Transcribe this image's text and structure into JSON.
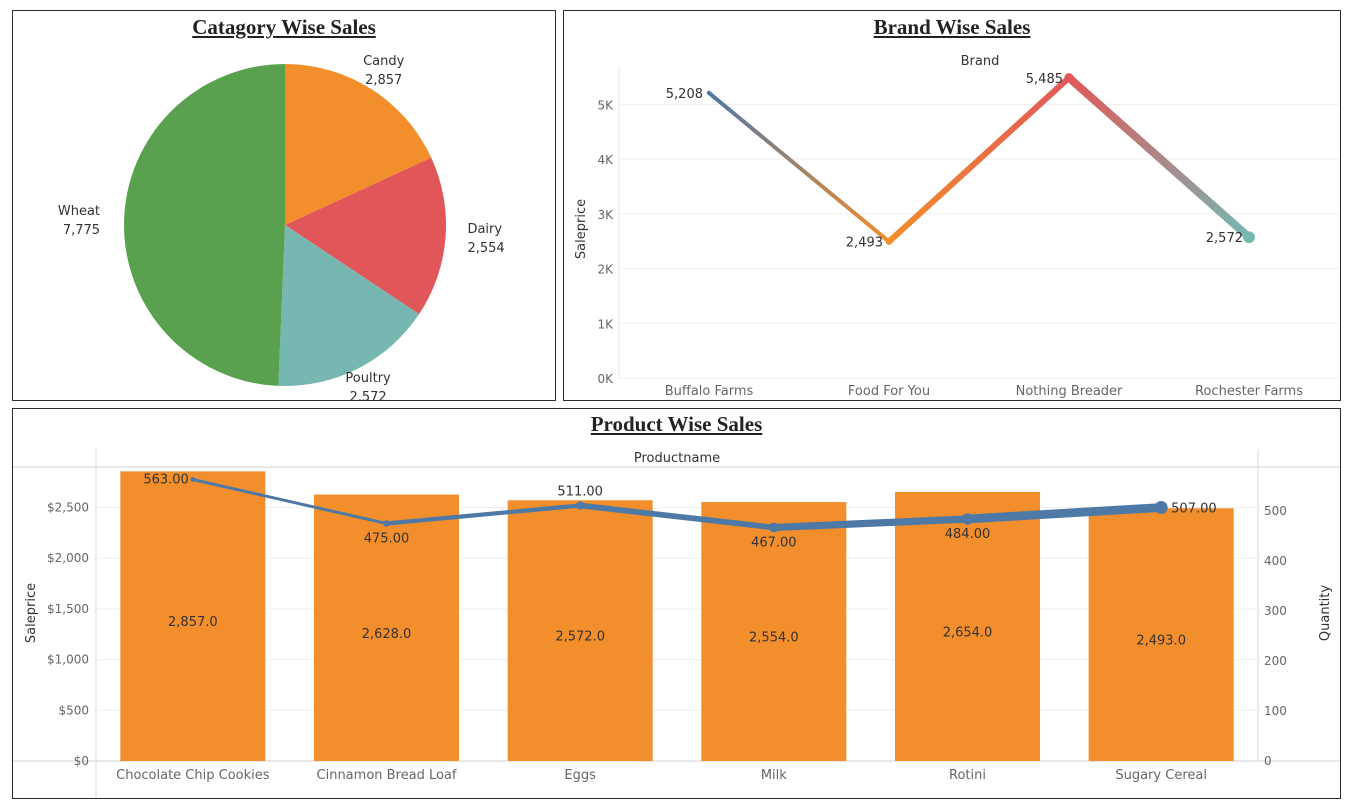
{
  "category_panel": {
    "title": "Catagory Wise Sales"
  },
  "brand_panel": {
    "title": "Brand Wise Sales",
    "header": "Brand",
    "y_axis_label": "Saleprice"
  },
  "product_panel": {
    "title": "Product Wise Sales",
    "header": "Productname",
    "y_left_label": "Saleprice",
    "y_right_label": "Quantity"
  },
  "chart_data": [
    {
      "type": "pie",
      "title": "Catagory Wise Sales",
      "slices": [
        {
          "label": "Candy",
          "value_label": "2,857",
          "value": 2857,
          "color": "#f28e2b"
        },
        {
          "label": "Dairy",
          "value_label": "2,554",
          "value": 2554,
          "color": "#e15759"
        },
        {
          "label": "Poultry",
          "value_label": "2,572",
          "value": 2572,
          "color": "#76b7b2"
        },
        {
          "label": "Wheat",
          "value_label": "7,775",
          "value": 7775,
          "color": "#59a14f"
        }
      ]
    },
    {
      "type": "line",
      "title": "Brand Wise Sales",
      "xlabel": "Brand",
      "ylabel": "Saleprice",
      "categories": [
        "Buffalo Farms",
        "Food For You",
        "Nothing Breader",
        "Rochester Farms"
      ],
      "values": [
        5208,
        2493,
        5485,
        2572
      ],
      "value_labels": [
        "5,208",
        "2,493",
        "5,485",
        "2,572"
      ],
      "point_colors": [
        "#4e79a7",
        "#f28e2b",
        "#e15759",
        "#76b7b2"
      ],
      "ylim": [
        0,
        5700
      ],
      "yticks": [
        0,
        1000,
        2000,
        3000,
        4000,
        5000
      ],
      "ytick_labels": [
        "0K",
        "1K",
        "2K",
        "3K",
        "4K",
        "5K"
      ],
      "grid": true
    },
    {
      "type": "bar",
      "title": "Product Wise Sales",
      "xlabel": "Productname",
      "categories": [
        "Chocolate Chip Cookies",
        "Cinnamon Bread Loaf",
        "Eggs",
        "Milk",
        "Rotini",
        "Sugary Cereal"
      ],
      "bar_series": {
        "axis_label": "Saleprice",
        "values": [
          2857,
          2628,
          2572,
          2554,
          2654,
          2493
        ],
        "value_labels": [
          "2,857.0",
          "2,628.0",
          "2,572.0",
          "2,554.0",
          "2,654.0",
          "2,493.0"
        ],
        "color": "#f28e2b",
        "ylim": [
          0,
          2900
        ],
        "yticks": [
          0,
          500,
          1000,
          1500,
          2000,
          2500
        ],
        "ytick_labels": [
          "$0",
          "$500",
          "$1,000",
          "$1,500",
          "$2,000",
          "$2,500"
        ]
      },
      "line_series": {
        "axis_label": "Quantity",
        "values": [
          563,
          475,
          511,
          467,
          484,
          507
        ],
        "value_labels": [
          "563.00",
          "475.00",
          "511.00",
          "467.00",
          "484.00",
          "507.00"
        ],
        "color": "#4e79a7",
        "ylim": [
          0,
          588
        ],
        "yticks": [
          0,
          100,
          200,
          300,
          400,
          500
        ],
        "ytick_labels": [
          "0",
          "100",
          "200",
          "300",
          "400",
          "500"
        ]
      },
      "grid": true
    }
  ]
}
